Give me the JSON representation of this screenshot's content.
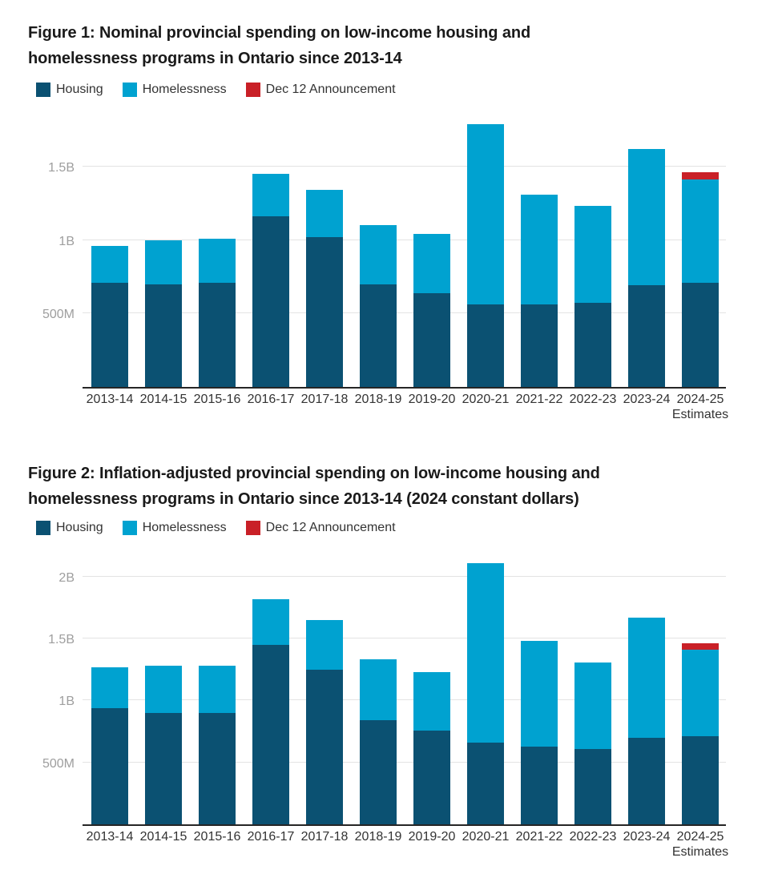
{
  "page": {
    "background": "#ffffff"
  },
  "figures": [
    {
      "title": "Figure 1: Nominal provincial spending on low-income housing and\nhomelessness programs in Ontario since 2013-14",
      "legend": [
        {
          "label": "Housing",
          "color": "#0b5172"
        },
        {
          "label": "Homelessness",
          "color": "#00a2d0"
        },
        {
          "label": "Dec 12 Announcement",
          "color": "#c92027"
        }
      ],
      "chart_data": {
        "type": "bar",
        "stacked": true,
        "grid": true,
        "legend_position": "top",
        "ylim": [
          0,
          1.87
        ],
        "yticks": [
          {
            "value": 0.5,
            "label": "500M"
          },
          {
            "value": 1.0,
            "label": "1B"
          },
          {
            "value": 1.5,
            "label": "1.5B"
          }
        ],
        "categories": [
          "2013-14",
          "2014-15",
          "2015-16",
          "2016-17",
          "2017-18",
          "2018-19",
          "2019-20",
          "2020-21",
          "2021-22",
          "2022-23",
          "2023-24",
          "2024-25"
        ],
        "category_sublabels": [
          null,
          null,
          null,
          null,
          null,
          null,
          null,
          null,
          null,
          null,
          null,
          "Estimates"
        ],
        "series": [
          {
            "name": "Housing",
            "color": "#0b5172",
            "values": [
              0.71,
              0.7,
              0.71,
              1.16,
              1.02,
              0.7,
              0.64,
              0.56,
              0.56,
              0.57,
              0.69,
              0.71
            ]
          },
          {
            "name": "Homelessness",
            "color": "#00a2d0",
            "values": [
              0.25,
              0.3,
              0.3,
              0.29,
              0.32,
              0.4,
              0.4,
              1.23,
              0.75,
              0.66,
              0.93,
              0.7
            ]
          },
          {
            "name": "Dec 12 Announcement",
            "color": "#c92027",
            "values": [
              0,
              0,
              0,
              0,
              0,
              0,
              0,
              0,
              0,
              0,
              0,
              0.05
            ]
          }
        ]
      }
    },
    {
      "title": "Figure 2: Inflation-adjusted provincial spending on low-income housing and\nhomelessness programs in Ontario since 2013-14 (2024 constant dollars)",
      "legend": [
        {
          "label": "Housing",
          "color": "#0b5172"
        },
        {
          "label": "Homelessness",
          "color": "#00a2d0"
        },
        {
          "label": "Dec 12 Announcement",
          "color": "#c92027"
        }
      ],
      "chart_data": {
        "type": "bar",
        "stacked": true,
        "grid": true,
        "legend_position": "top",
        "ylim": [
          0,
          2.16
        ],
        "yticks": [
          {
            "value": 0.5,
            "label": "500M"
          },
          {
            "value": 1.0,
            "label": "1B"
          },
          {
            "value": 1.5,
            "label": "1.5B"
          },
          {
            "value": 2.0,
            "label": "2B"
          }
        ],
        "categories": [
          "2013-14",
          "2014-15",
          "2015-16",
          "2016-17",
          "2017-18",
          "2018-19",
          "2019-20",
          "2020-21",
          "2021-22",
          "2022-23",
          "2023-24",
          "2024-25"
        ],
        "category_sublabels": [
          null,
          null,
          null,
          null,
          null,
          null,
          null,
          null,
          null,
          null,
          null,
          "Estimates"
        ],
        "series": [
          {
            "name": "Housing",
            "color": "#0b5172",
            "values": [
              0.94,
              0.9,
              0.9,
              1.45,
              1.25,
              0.84,
              0.76,
              0.66,
              0.63,
              0.61,
              0.7,
              0.71
            ]
          },
          {
            "name": "Homelessness",
            "color": "#00a2d0",
            "values": [
              0.33,
              0.38,
              0.38,
              0.37,
              0.4,
              0.49,
              0.47,
              1.45,
              0.85,
              0.7,
              0.97,
              0.7
            ]
          },
          {
            "name": "Dec 12 Announcement",
            "color": "#c92027",
            "values": [
              0,
              0,
              0,
              0,
              0,
              0,
              0,
              0,
              0,
              0,
              0,
              0.05
            ]
          }
        ]
      }
    }
  ]
}
